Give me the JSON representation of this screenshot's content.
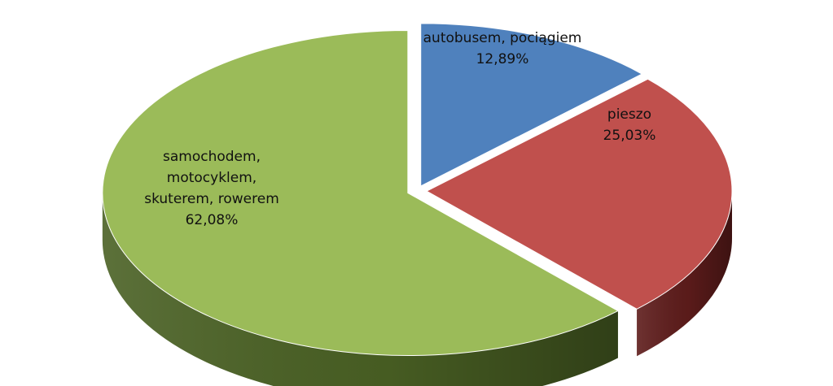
{
  "chart_data": {
    "type": "pie",
    "style": "3d-exploded",
    "categories": [
      "autobusem, pociągiem",
      "pieszo",
      "samochodem, motocyklem, skuterem, rowerem"
    ],
    "values": [
      12.89,
      25.03,
      62.08
    ],
    "data_labels": [
      "autobusem, pociągiem\n12,89%",
      "pieszo\n25,03%",
      "samochodem,\nmotocyklem,\nskuterem, rowerem\n62,08%"
    ],
    "colors": [
      "#4f81bd",
      "#c0504d",
      "#9bbb59"
    ],
    "side_colors": [
      "#2d4e78",
      "#5e1c1b",
      "#4a6124"
    ],
    "legend": "none"
  }
}
